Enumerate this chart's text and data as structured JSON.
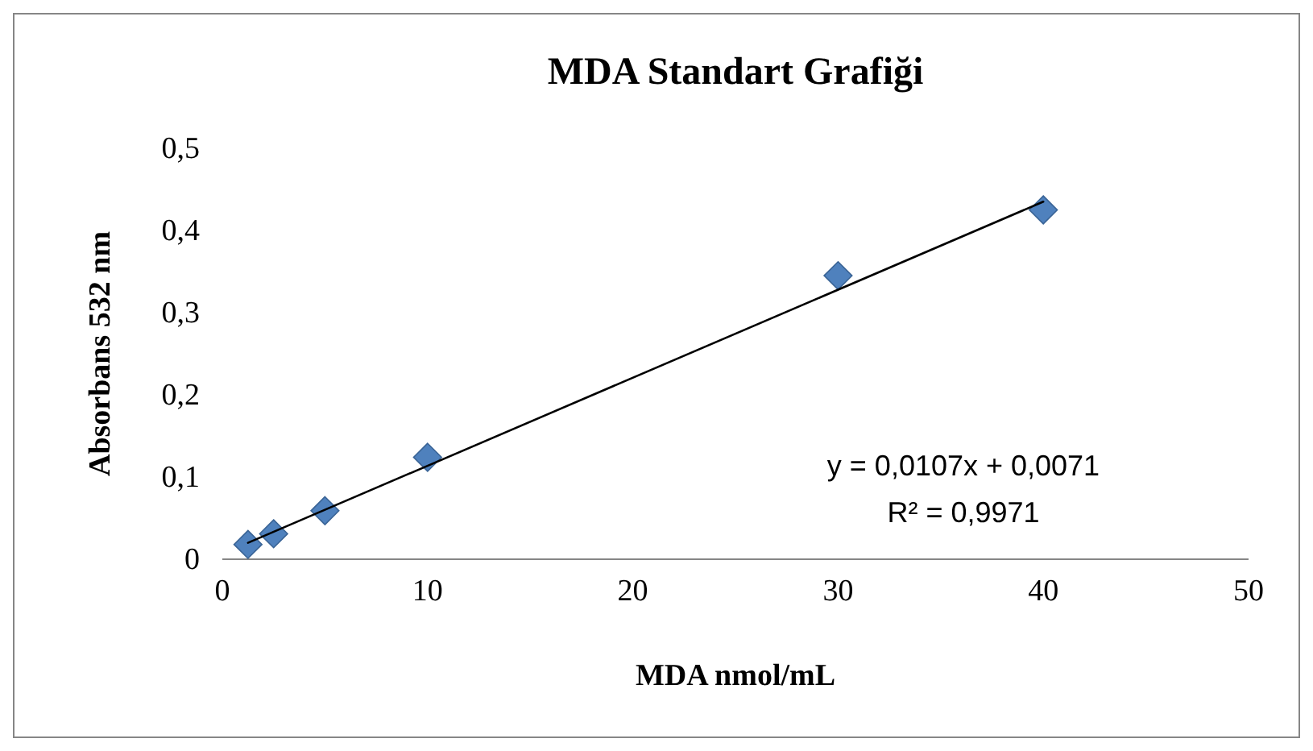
{
  "chart_data": {
    "type": "scatter",
    "title": "MDA Standart Grafiği",
    "xlabel": "MDA nmol/mL",
    "ylabel": "Absorbans 532 nm",
    "xlim": [
      0,
      50
    ],
    "xticks": [
      0,
      10,
      20,
      30,
      40,
      50
    ],
    "ylim": [
      0,
      0.5
    ],
    "yticks": [
      0,
      {
        "value": 0.1,
        "label": "0,1"
      },
      {
        "value": 0.2,
        "label": "0,2"
      },
      {
        "value": 0.3,
        "label": "0,3"
      },
      {
        "value": 0.4,
        "label": "0,4"
      },
      {
        "value": 0.5,
        "label": "0,5"
      }
    ],
    "grid": false,
    "series": [
      {
        "marker": "diamond",
        "color": "#4f81bd",
        "x": [
          1.25,
          2.5,
          5,
          10,
          30,
          40
        ],
        "values": [
          0.018,
          0.031,
          0.059,
          0.124,
          0.345,
          0.425
        ]
      },
      {
        "type": "line",
        "color": "#000000",
        "x": [
          1.25,
          40
        ],
        "values": [
          0.02,
          0.435
        ]
      }
    ],
    "annotations": [
      "y = 0,0107x + 0,0071",
      "R² = 0,9971"
    ]
  }
}
